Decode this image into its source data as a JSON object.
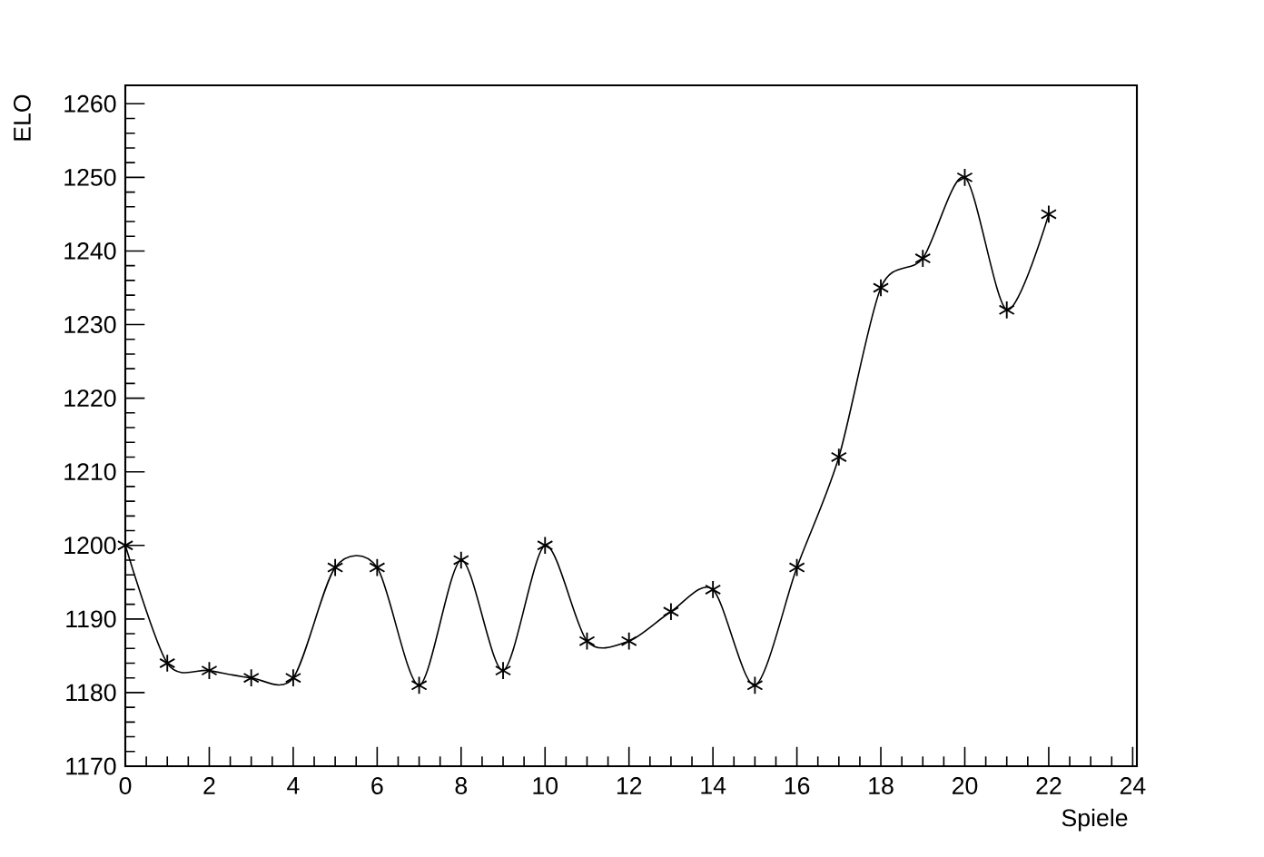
{
  "chart_data": {
    "type": "line",
    "xlabel": "Spiele",
    "ylabel": "ELO",
    "x": [
      0,
      1,
      2,
      3,
      4,
      5,
      6,
      7,
      8,
      9,
      10,
      11,
      12,
      13,
      14,
      15,
      16,
      17,
      18,
      19,
      20,
      21,
      22
    ],
    "series": [
      {
        "color": "#000000",
        "values": [
          1200,
          1184,
          1183,
          1182,
          1182,
          1197,
          1197,
          1181,
          1198,
          1183,
          1200,
          1187,
          1187,
          1191,
          1194,
          1181,
          1197,
          1212,
          1235,
          1239,
          1250,
          1232,
          1245
        ]
      }
    ],
    "xlim": [
      0,
      24.1
    ],
    "ylim": [
      1170,
      1262.5
    ],
    "xticks": [
      0,
      2,
      4,
      6,
      8,
      10,
      12,
      14,
      16,
      18,
      20,
      22,
      24
    ],
    "yticks": [
      1170,
      1180,
      1190,
      1200,
      1210,
      1220,
      1230,
      1240,
      1250,
      1260
    ],
    "grid": false,
    "marker": "cross",
    "line_style": "solid"
  }
}
